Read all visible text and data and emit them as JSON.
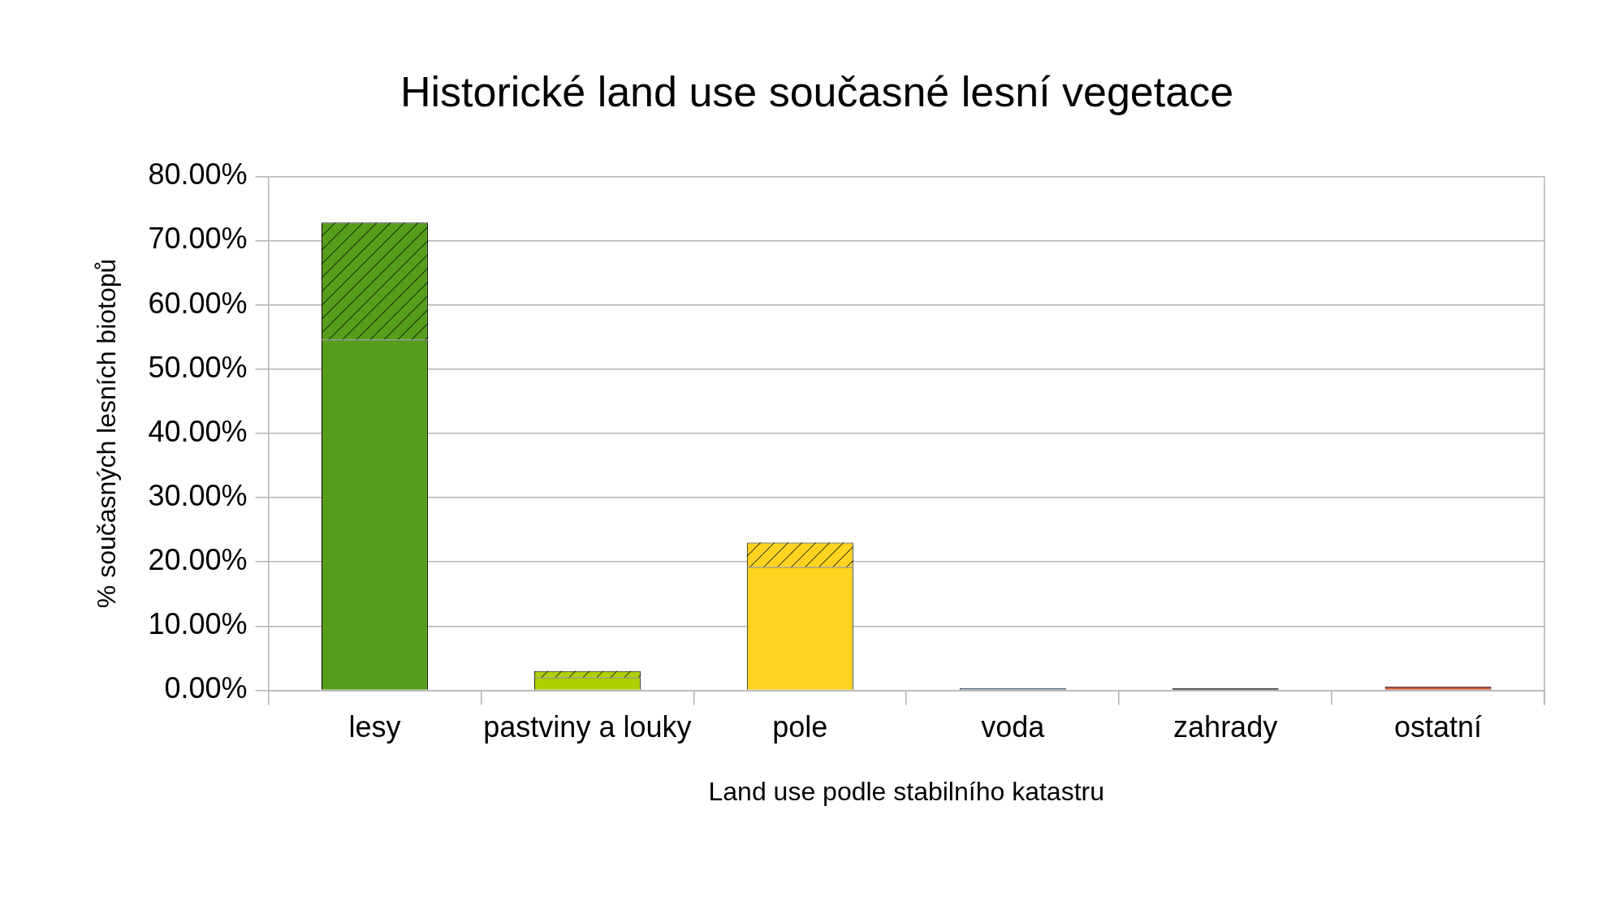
{
  "chart_data": {
    "type": "bar",
    "title": "Historické land use současné lesní vegetace",
    "xlabel": "Land use podle stabilního katastru",
    "ylabel": "% současných lesních biotopů",
    "categories": [
      "lesy",
      "pastviny a louky",
      "pole",
      "voda",
      "zahrady",
      "ostatní"
    ],
    "stacked": true,
    "series": [
      {
        "colors": [
          "#579d1c",
          "#aecf00",
          "#ffd320",
          "#729fcf",
          "#1a1a1a",
          "#c9563b"
        ],
        "values": [
          54.6,
          2.0,
          19.2,
          0.3,
          0.3,
          0.6
        ]
      },
      {
        "colors": [
          "#579d1c",
          "#aecf00",
          "#ffd320",
          "#729fcf",
          "#1a1a1a",
          "#c9563b"
        ],
        "values": [
          18.2,
          1.0,
          3.8,
          null,
          null,
          null
        ]
      }
    ],
    "ylim": [
      0,
      80
    ],
    "yticks": [
      {
        "value": 0,
        "label": "0.00%"
      },
      {
        "value": 10,
        "label": "10.00%"
      },
      {
        "value": 20,
        "label": "20.00%"
      },
      {
        "value": 30,
        "label": "30.00%"
      },
      {
        "value": 40,
        "label": "40.00%"
      },
      {
        "value": 50,
        "label": "50.00%"
      },
      {
        "value": 60,
        "label": "60.00%"
      },
      {
        "value": 70,
        "label": "70.00%"
      },
      {
        "value": 80,
        "label": "80.00%"
      }
    ],
    "grid": "y",
    "legend": false
  }
}
